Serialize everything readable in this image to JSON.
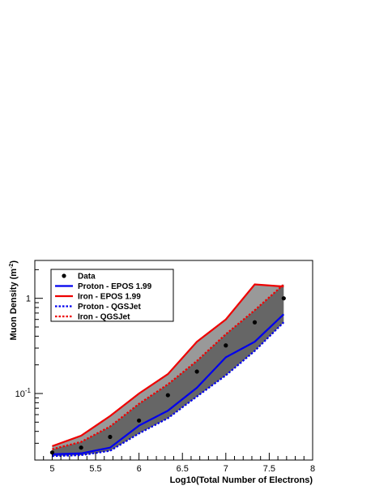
{
  "chart_data": {
    "type": "line",
    "xlabel": "Log10(Total Number of Electrons)",
    "ylabel_main": "Muon Density (m",
    "ylabel_sup": "-2",
    "ylabel_close": ")",
    "x_range": [
      4.8,
      8.0
    ],
    "y_range": [
      0.02,
      2.5
    ],
    "y_scale": "log",
    "grid": false,
    "legend_position": "top-left",
    "x_ticks": [
      {
        "value": 5,
        "label": "5"
      },
      {
        "value": 5.5,
        "label": "5.5"
      },
      {
        "value": 6,
        "label": "6"
      },
      {
        "value": 6.5,
        "label": "6.5"
      },
      {
        "value": 7,
        "label": "7"
      },
      {
        "value": 7.5,
        "label": "7.5"
      },
      {
        "value": 8,
        "label": "8"
      }
    ],
    "y_ticks": [
      {
        "value": 0.1,
        "base": "10",
        "exp": "-1"
      },
      {
        "value": 1,
        "base": "1",
        "exp": ""
      }
    ],
    "x": [
      5.0,
      5.333,
      5.667,
      6.0,
      6.333,
      6.667,
      7.0,
      7.333,
      7.667
    ],
    "series": [
      {
        "name": "Data",
        "style": "points",
        "color": "#000000",
        "values": [
          0.024,
          0.027,
          0.035,
          0.052,
          0.096,
          0.17,
          0.32,
          0.56,
          1.0
        ]
      },
      {
        "name": "Proton - EPOS 1.99",
        "style": "solid",
        "color": "#0000ee",
        "values": [
          0.023,
          0.0235,
          0.027,
          0.046,
          0.066,
          0.115,
          0.24,
          0.35,
          0.68
        ]
      },
      {
        "name": "Iron - EPOS 1.99",
        "style": "solid",
        "color": "#ee0000",
        "values": [
          0.028,
          0.036,
          0.058,
          0.1,
          0.16,
          0.35,
          0.6,
          1.4,
          1.33
        ]
      },
      {
        "name": "Proton - QGSJet",
        "style": "dotted",
        "color": "#0000ee",
        "values": [
          0.022,
          0.0225,
          0.025,
          0.038,
          0.055,
          0.093,
          0.155,
          0.28,
          0.56
        ]
      },
      {
        "name": "Iron - QGSJet",
        "style": "dotted",
        "color": "#ee0000",
        "values": [
          0.026,
          0.031,
          0.045,
          0.078,
          0.125,
          0.22,
          0.42,
          0.75,
          1.4
        ]
      }
    ],
    "bands": [
      {
        "upper": "Iron - EPOS 1.99",
        "lower": "Iron - QGSJet",
        "color": "#999999"
      },
      {
        "upper": "Iron - QGSJet",
        "lower": "Proton - QGSJet",
        "color": "#666666"
      }
    ]
  }
}
